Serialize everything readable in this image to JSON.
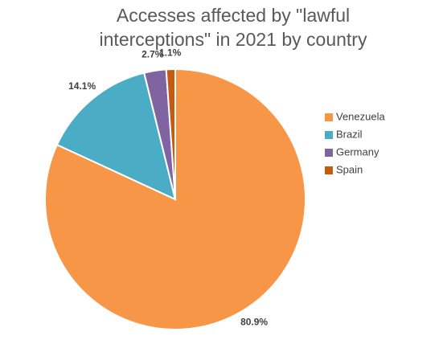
{
  "chart_data": {
    "type": "pie",
    "title": "Accesses affected by \"lawful interceptions\" in 2021 by country",
    "categories": [
      "Venezuela",
      "Brazil",
      "Germany",
      "Spain"
    ],
    "values": [
      80.9,
      14.1,
      2.7,
      1.1
    ],
    "value_labels": [
      "80.9%",
      "14.1%",
      "2.7%",
      "1.1%"
    ],
    "colors": [
      "#f79646",
      "#4bacc6",
      "#8064a2",
      "#c55a11"
    ],
    "legend": "right"
  }
}
